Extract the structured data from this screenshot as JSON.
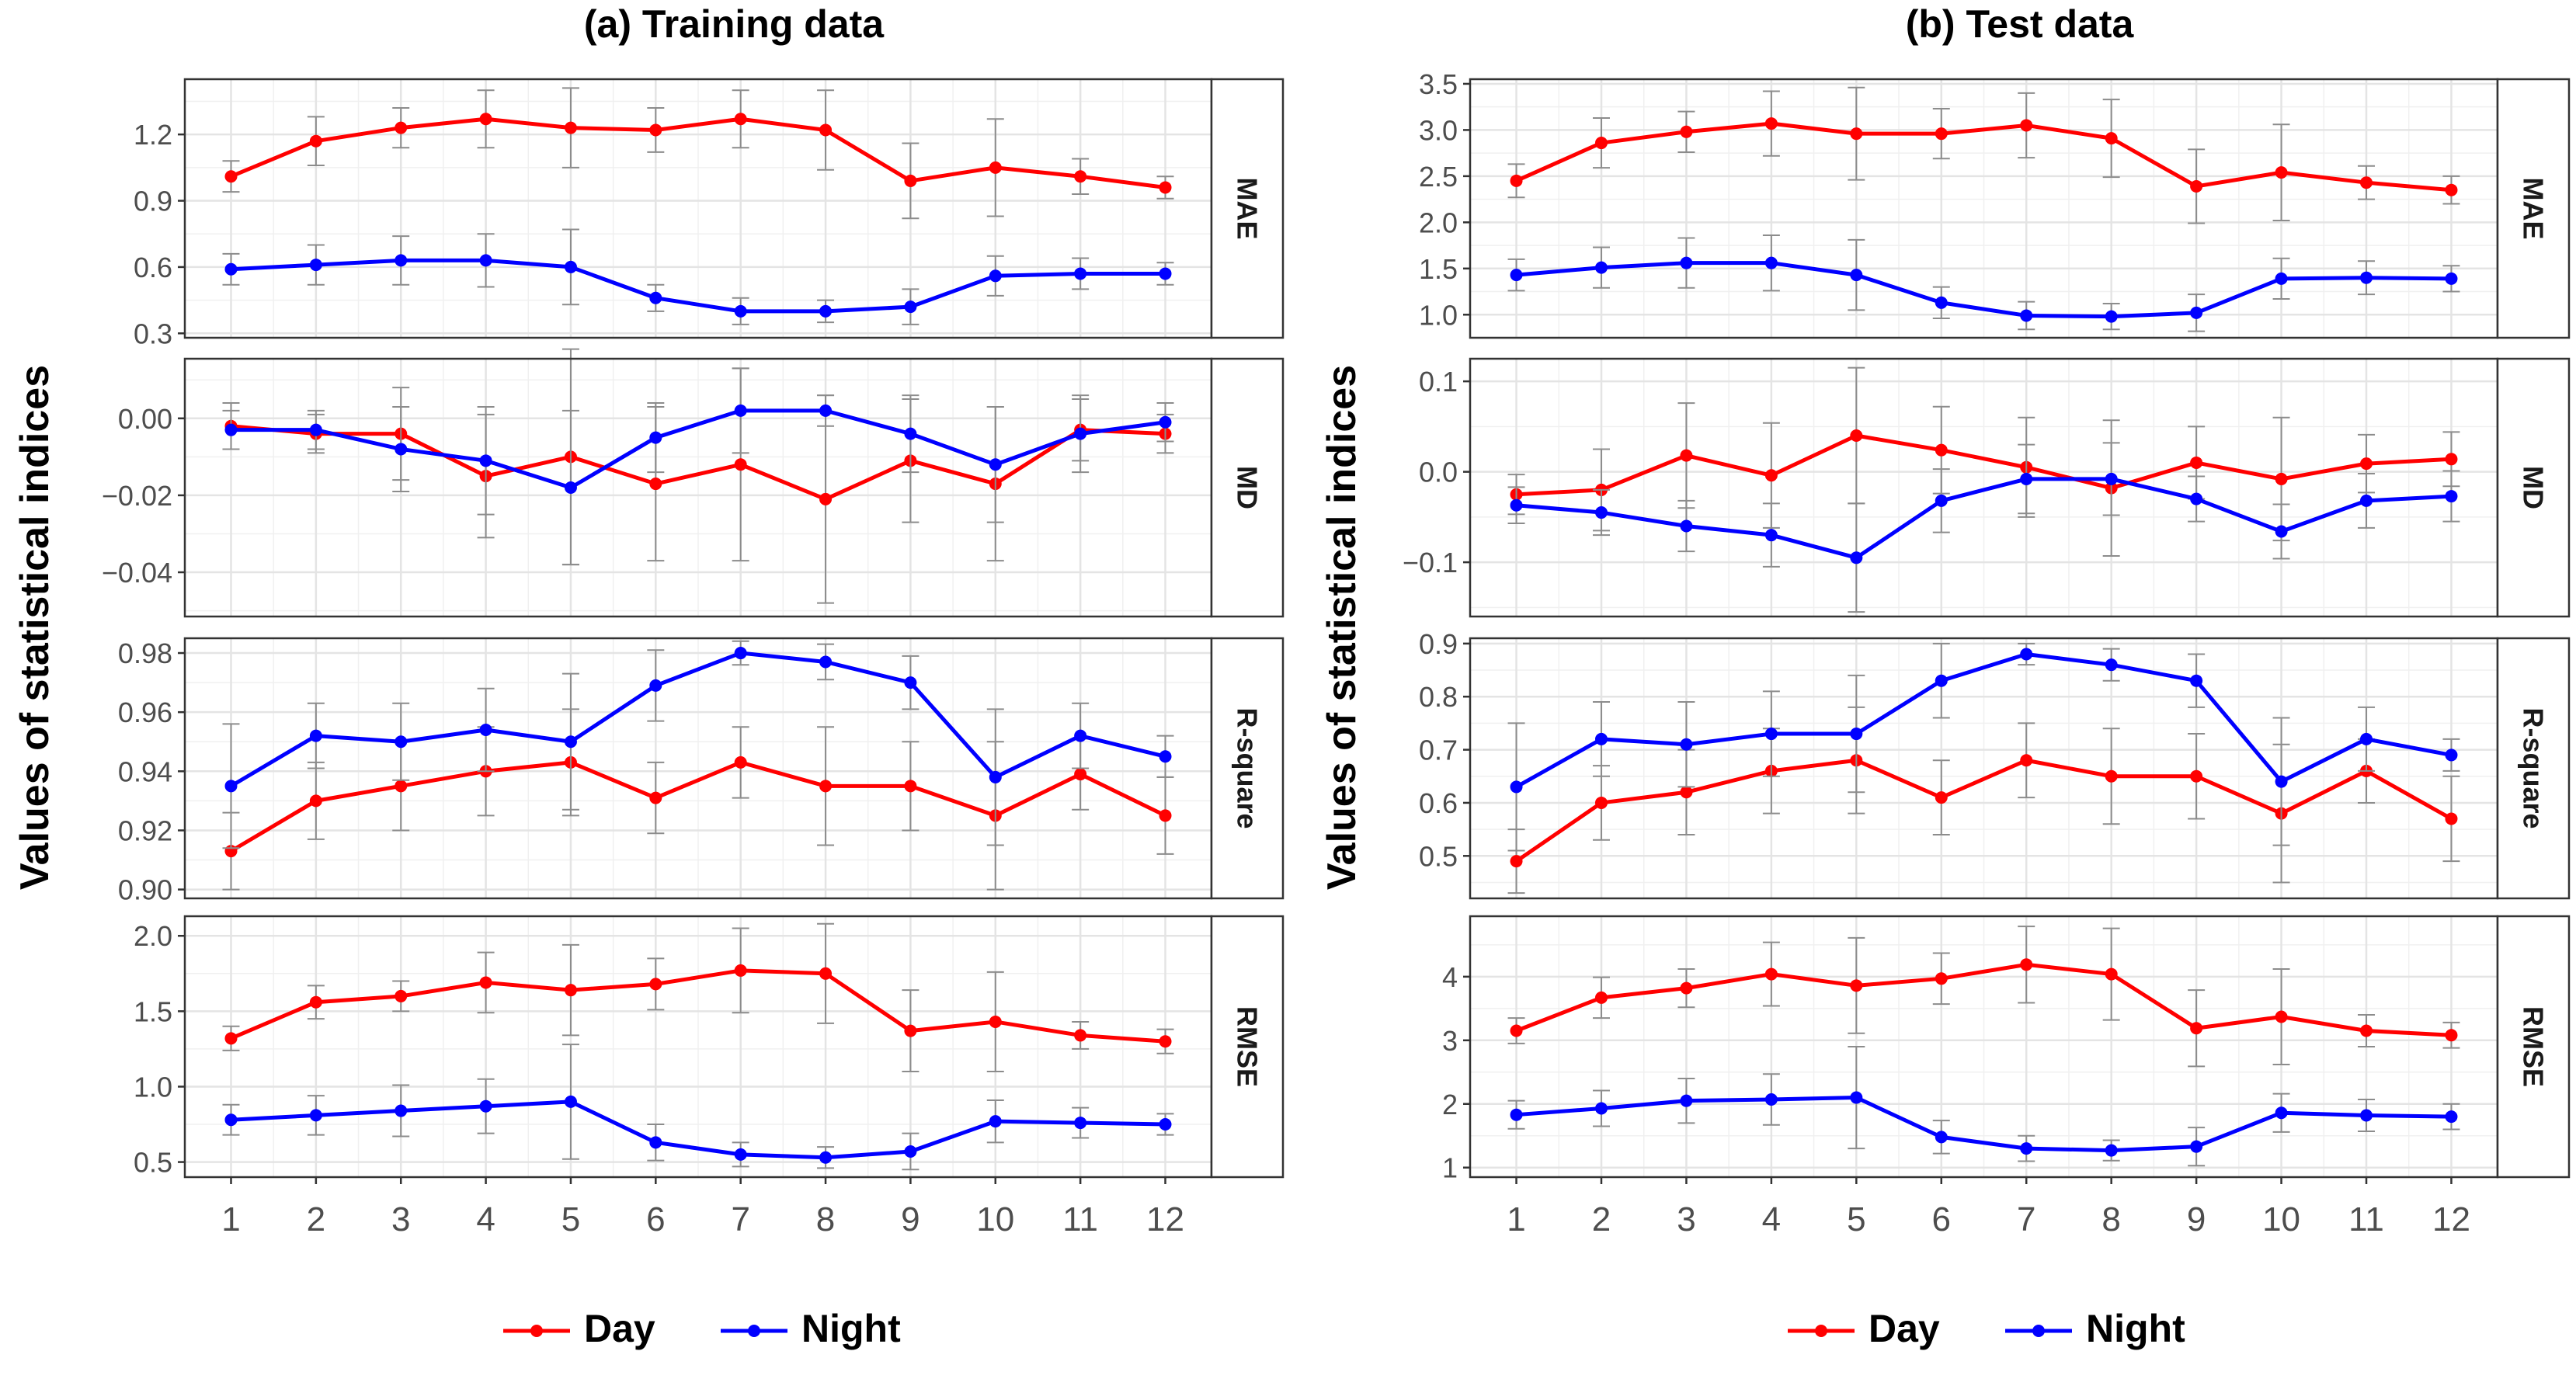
{
  "ylabel": "Values of statistical indices",
  "legend": [
    {
      "name": "Day",
      "color": "#ff0000"
    },
    {
      "name": "Night",
      "color": "#0000ff"
    }
  ],
  "chart_data": [
    {
      "type": "line",
      "title": "(a) Training data",
      "x": [
        1,
        2,
        3,
        4,
        5,
        6,
        7,
        8,
        9,
        10,
        11,
        12
      ],
      "xticks": [
        "1",
        "2",
        "3",
        "4",
        "5",
        "6",
        "7",
        "8",
        "9",
        "10",
        "11",
        "12"
      ],
      "panels": [
        {
          "label": "MAE",
          "ylim": [
            0.28,
            1.45
          ],
          "yticks": [
            0.3,
            0.6,
            0.9,
            1.2
          ],
          "yticklabels": [
            "0.3",
            "0.6",
            "0.9",
            "1.2"
          ],
          "series": [
            {
              "name": "Day",
              "values": [
                1.01,
                1.17,
                1.23,
                1.27,
                1.23,
                1.22,
                1.27,
                1.22,
                0.99,
                1.05,
                1.01,
                0.96
              ],
              "err": [
                0.07,
                0.11,
                0.09,
                0.13,
                0.18,
                0.1,
                0.13,
                0.18,
                0.17,
                0.22,
                0.08,
                0.05
              ]
            },
            {
              "name": "Night",
              "values": [
                0.59,
                0.61,
                0.63,
                0.63,
                0.6,
                0.46,
                0.4,
                0.4,
                0.42,
                0.56,
                0.57,
                0.57
              ],
              "err": [
                0.07,
                0.09,
                0.11,
                0.12,
                0.17,
                0.06,
                0.06,
                0.05,
                0.08,
                0.09,
                0.07,
                0.05
              ]
            }
          ]
        },
        {
          "label": "MD",
          "ylim": [
            -0.0515,
            0.0155
          ],
          "yticks": [
            0.0,
            -0.02,
            -0.04
          ],
          "yticklabels": [
            "0.00",
            "−0.02",
            "−0.04"
          ],
          "series": [
            {
              "name": "Day",
              "values": [
                -0.002,
                -0.004,
                -0.004,
                -0.015,
                -0.01,
                -0.017,
                -0.012,
                -0.021,
                -0.011,
                -0.017,
                -0.003,
                -0.004
              ],
              "err": [
                0.006,
                0.005,
                0.012,
                0.016,
                0.028,
                0.02,
                0.025,
                0.027,
                0.016,
                0.02,
                0.008,
                0.005
              ]
            },
            {
              "name": "Night",
              "values": [
                -0.003,
                -0.003,
                -0.008,
                -0.011,
                -0.018,
                -0.005,
                0.002,
                0.002,
                -0.004,
                -0.012,
                -0.004,
                -0.001
              ],
              "err": [
                0.005,
                0.005,
                0.011,
                0.014,
                0.02,
                0.009,
                0.011,
                0.004,
                0.01,
                0.015,
                0.01,
                0.005
              ]
            }
          ]
        },
        {
          "label": "R-square",
          "ylim": [
            0.897,
            0.985
          ],
          "yticks": [
            0.9,
            0.92,
            0.94,
            0.96,
            0.98
          ],
          "yticklabels": [
            "0.90",
            "0.92",
            "0.94",
            "0.96",
            "0.98"
          ],
          "series": [
            {
              "name": "Day",
              "values": [
                0.913,
                0.93,
                0.935,
                0.94,
                0.943,
                0.931,
                0.943,
                0.935,
                0.935,
                0.925,
                0.939,
                0.925
              ],
              "err": [
                0.013,
                0.013,
                0.015,
                0.015,
                0.018,
                0.012,
                0.012,
                0.02,
                0.015,
                0.025,
                0.012,
                0.013
              ]
            },
            {
              "name": "Night",
              "values": [
                0.935,
                0.952,
                0.95,
                0.954,
                0.95,
                0.969,
                0.98,
                0.977,
                0.97,
                0.938,
                0.952,
                0.945
              ],
              "err": [
                0.021,
                0.011,
                0.013,
                0.014,
                0.023,
                0.012,
                0.004,
                0.006,
                0.009,
                0.023,
                0.011,
                0.007
              ]
            }
          ]
        },
        {
          "label": "RMSE",
          "ylim": [
            0.4,
            2.13
          ],
          "yticks": [
            0.5,
            1.0,
            1.5,
            2.0
          ],
          "yticklabels": [
            "0.5",
            "1.0",
            "1.5",
            "2.0"
          ],
          "series": [
            {
              "name": "Day",
              "values": [
                1.32,
                1.56,
                1.6,
                1.69,
                1.64,
                1.68,
                1.77,
                1.75,
                1.37,
                1.43,
                1.34,
                1.3
              ],
              "err": [
                0.08,
                0.11,
                0.1,
                0.2,
                0.3,
                0.17,
                0.28,
                0.33,
                0.27,
                0.33,
                0.09,
                0.08
              ]
            },
            {
              "name": "Night",
              "values": [
                0.78,
                0.81,
                0.84,
                0.87,
                0.9,
                0.63,
                0.55,
                0.53,
                0.57,
                0.77,
                0.76,
                0.75
              ],
              "err": [
                0.1,
                0.13,
                0.17,
                0.18,
                0.38,
                0.12,
                0.08,
                0.07,
                0.12,
                0.14,
                0.1,
                0.07
              ]
            }
          ]
        }
      ]
    },
    {
      "type": "line",
      "title": "(b) Test data",
      "x": [
        1,
        2,
        3,
        4,
        5,
        6,
        7,
        8,
        9,
        10,
        11,
        12
      ],
      "xticks": [
        "1",
        "2",
        "3",
        "4",
        "5",
        "6",
        "7",
        "8",
        "9",
        "10",
        "11",
        "12"
      ],
      "panels": [
        {
          "label": "MAE",
          "ylim": [
            0.75,
            3.55
          ],
          "yticks": [
            1.0,
            1.5,
            2.0,
            2.5,
            3.0,
            3.5
          ],
          "yticklabels": [
            "1.0",
            "1.5",
            "2.0",
            "2.5",
            "3.0",
            "3.5"
          ],
          "series": [
            {
              "name": "Day",
              "values": [
                2.45,
                2.86,
                2.98,
                3.07,
                2.96,
                2.96,
                3.05,
                2.91,
                2.39,
                2.54,
                2.43,
                2.35
              ],
              "err": [
                0.18,
                0.27,
                0.22,
                0.35,
                0.5,
                0.27,
                0.35,
                0.42,
                0.4,
                0.52,
                0.18,
                0.15
              ]
            },
            {
              "name": "Night",
              "values": [
                1.43,
                1.51,
                1.56,
                1.56,
                1.43,
                1.13,
                0.99,
                0.98,
                1.02,
                1.39,
                1.4,
                1.39
              ],
              "err": [
                0.17,
                0.22,
                0.27,
                0.3,
                0.38,
                0.17,
                0.15,
                0.14,
                0.2,
                0.22,
                0.18,
                0.14
              ]
            }
          ]
        },
        {
          "label": "MD",
          "ylim": [
            -0.16,
            0.125
          ],
          "yticks": [
            0.1,
            0.0,
            -0.1
          ],
          "yticklabels": [
            "0.1",
            "0.0",
            "−0.1"
          ],
          "series": [
            {
              "name": "Day",
              "values": [
                -0.025,
                -0.02,
                0.018,
                -0.004,
                0.04,
                0.024,
                0.005,
                -0.018,
                0.01,
                -0.008,
                0.009,
                0.014
              ],
              "err": [
                0.022,
                0.045,
                0.058,
                0.058,
                0.075,
                0.048,
                0.055,
                0.075,
                0.04,
                0.068,
                0.032,
                0.03
              ]
            },
            {
              "name": "Night",
              "values": [
                -0.037,
                -0.045,
                -0.06,
                -0.07,
                -0.095,
                -0.032,
                -0.008,
                -0.008,
                -0.03,
                -0.066,
                -0.032,
                -0.027
              ],
              "err": [
                0.02,
                0.025,
                0.028,
                0.035,
                0.06,
                0.035,
                0.038,
                0.04,
                0.025,
                0.03,
                0.03,
                0.028
              ]
            }
          ]
        },
        {
          "label": "R-square",
          "ylim": [
            0.42,
            0.91
          ],
          "yticks": [
            0.5,
            0.6,
            0.7,
            0.8,
            0.9
          ],
          "yticklabels": [
            "0.5",
            "0.6",
            "0.7",
            "0.8",
            "0.9"
          ],
          "series": [
            {
              "name": "Day",
              "values": [
                0.49,
                0.6,
                0.62,
                0.66,
                0.68,
                0.61,
                0.68,
                0.65,
                0.65,
                0.58,
                0.66,
                0.57
              ],
              "err": [
                0.06,
                0.07,
                0.08,
                0.08,
                0.1,
                0.07,
                0.07,
                0.09,
                0.08,
                0.13,
                0.06,
                0.08
              ]
            },
            {
              "name": "Night",
              "values": [
                0.63,
                0.72,
                0.71,
                0.73,
                0.73,
                0.83,
                0.88,
                0.86,
                0.83,
                0.64,
                0.72,
                0.69
              ],
              "err": [
                0.12,
                0.07,
                0.08,
                0.08,
                0.11,
                0.07,
                0.02,
                0.03,
                0.05,
                0.12,
                0.06,
                0.03
              ]
            }
          ]
        },
        {
          "label": "RMSE",
          "ylim": [
            0.85,
            4.95
          ],
          "yticks": [
            1,
            2,
            3,
            4
          ],
          "yticklabels": [
            "1",
            "2",
            "3",
            "4"
          ],
          "series": [
            {
              "name": "Day",
              "values": [
                3.15,
                3.67,
                3.82,
                4.04,
                3.86,
                3.97,
                4.19,
                4.04,
                3.19,
                3.37,
                3.15,
                3.08
              ],
              "err": [
                0.2,
                0.32,
                0.3,
                0.5,
                0.75,
                0.4,
                0.6,
                0.72,
                0.6,
                0.75,
                0.25,
                0.2
              ]
            },
            {
              "name": "Night",
              "values": [
                1.83,
                1.93,
                2.05,
                2.07,
                2.1,
                1.48,
                1.3,
                1.27,
                1.33,
                1.86,
                1.82,
                1.8
              ],
              "err": [
                0.22,
                0.28,
                0.35,
                0.4,
                0.8,
                0.26,
                0.2,
                0.16,
                0.3,
                0.3,
                0.25,
                0.2
              ]
            }
          ]
        }
      ]
    }
  ]
}
